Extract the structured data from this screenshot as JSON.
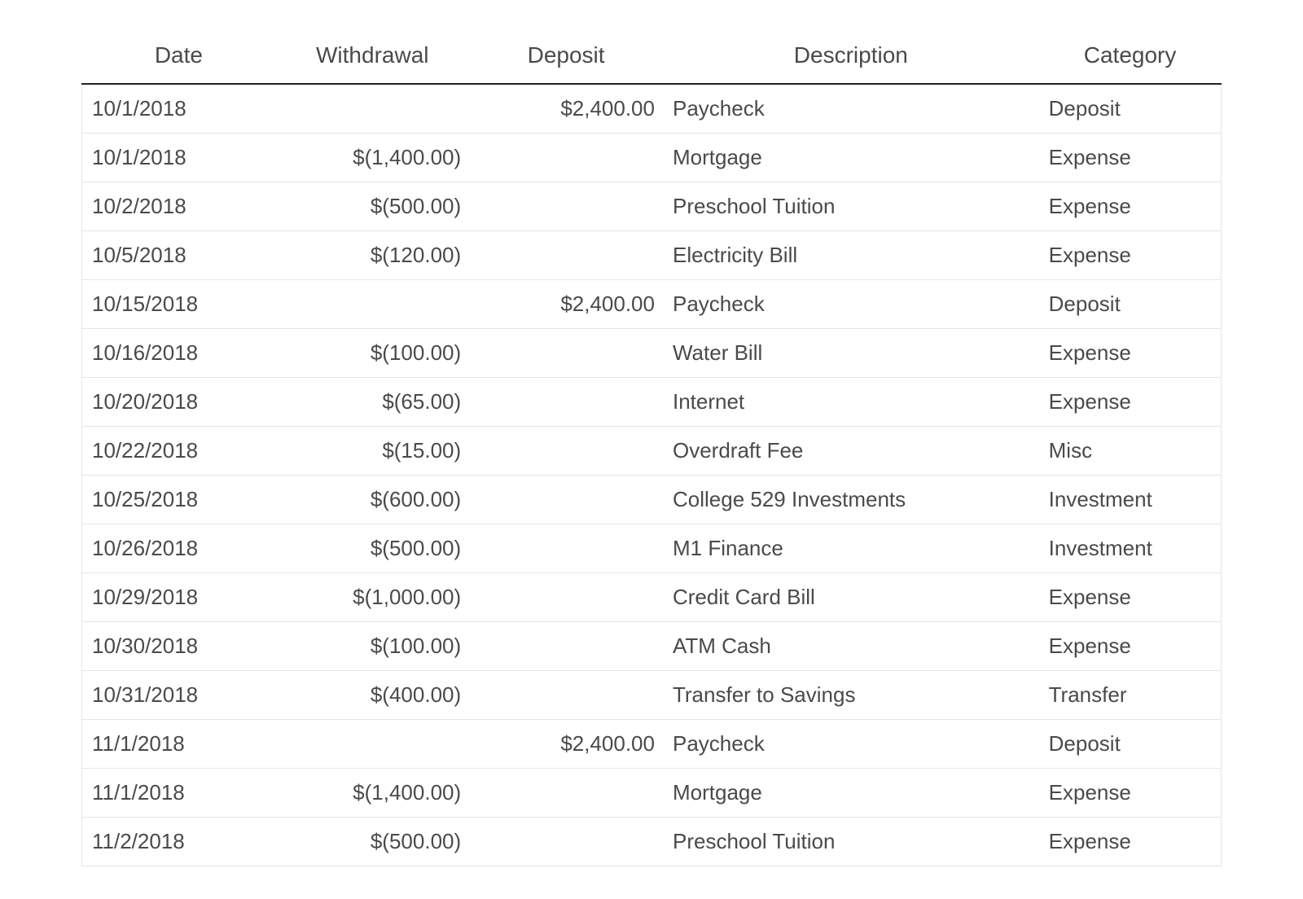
{
  "table": {
    "type": "table",
    "columns": [
      {
        "key": "date",
        "label": "Date",
        "align": "left",
        "width_pct": 17
      },
      {
        "key": "withdrawal",
        "label": "Withdrawal",
        "align": "right",
        "width_pct": 17
      },
      {
        "key": "deposit",
        "label": "Deposit",
        "align": "right",
        "width_pct": 17
      },
      {
        "key": "description",
        "label": "Description",
        "align": "left",
        "width_pct": 33
      },
      {
        "key": "category",
        "label": "Category",
        "align": "left",
        "width_pct": 16
      }
    ],
    "rows": [
      [
        "10/1/2018",
        "",
        "$2,400.00",
        "Paycheck",
        "Deposit"
      ],
      [
        "10/1/2018",
        "$(1,400.00)",
        "",
        "Mortgage",
        "Expense"
      ],
      [
        "10/2/2018",
        "$(500.00)",
        "",
        "Preschool Tuition",
        "Expense"
      ],
      [
        "10/5/2018",
        "$(120.00)",
        "",
        "Electricity Bill",
        "Expense"
      ],
      [
        "10/15/2018",
        "",
        "$2,400.00",
        "Paycheck",
        "Deposit"
      ],
      [
        "10/16/2018",
        "$(100.00)",
        "",
        "Water Bill",
        "Expense"
      ],
      [
        "10/20/2018",
        "$(65.00)",
        "",
        "Internet",
        "Expense"
      ],
      [
        "10/22/2018",
        "$(15.00)",
        "",
        "Overdraft Fee",
        "Misc"
      ],
      [
        "10/25/2018",
        "$(600.00)",
        "",
        "College 529 Investments",
        "Investment"
      ],
      [
        "10/26/2018",
        "$(500.00)",
        "",
        "M1 Finance",
        "Investment"
      ],
      [
        "10/29/2018",
        "$(1,000.00)",
        "",
        "Credit Card Bill",
        "Expense"
      ],
      [
        "10/30/2018",
        "$(100.00)",
        "",
        "ATM Cash",
        "Expense"
      ],
      [
        "10/31/2018",
        "$(400.00)",
        "",
        "Transfer to Savings",
        "Transfer"
      ],
      [
        "11/1/2018",
        "",
        "$2,400.00",
        "Paycheck",
        "Deposit"
      ],
      [
        "11/1/2018",
        "$(1,400.00)",
        "",
        "Mortgage",
        "Expense"
      ],
      [
        "11/2/2018",
        "$(500.00)",
        "",
        "Preschool Tuition",
        "Expense"
      ]
    ],
    "style": {
      "header_fontsize_pt": 21,
      "body_fontsize_pt": 20,
      "text_color": "#4a4a4a",
      "header_border_color": "#222222",
      "row_border_color": "#e5e5e5",
      "background_color": "#ffffff",
      "font_family": "-apple-system, Helvetica, Arial, sans-serif"
    }
  }
}
